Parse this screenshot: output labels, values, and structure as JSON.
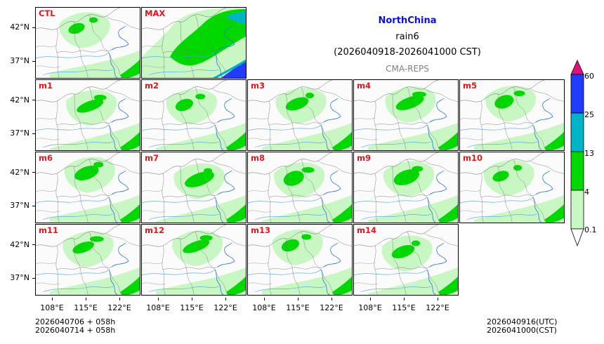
{
  "header": {
    "region": "NorthChina",
    "variable": "rain6",
    "period": "(2026040918-2026041000 CST)",
    "system": "CMA-REPS"
  },
  "colors": {
    "region_title": "#0b10d6",
    "member_label": "#e8141c",
    "system_label": "#808080",
    "levels": [
      "#c9f7c4",
      "#00d800",
      "#00b4c8",
      "#1f3cff",
      "#e0107a"
    ]
  },
  "panels": [
    {
      "label": "CTL"
    },
    {
      "label": "MAX"
    },
    {
      "label": "m1"
    },
    {
      "label": "m2"
    },
    {
      "label": "m3"
    },
    {
      "label": "m4"
    },
    {
      "label": "m5"
    },
    {
      "label": "m6"
    },
    {
      "label": "m7"
    },
    {
      "label": "m8"
    },
    {
      "label": "m9"
    },
    {
      "label": "m10"
    },
    {
      "label": "m11"
    },
    {
      "label": "m12"
    },
    {
      "label": "m13"
    },
    {
      "label": "m14"
    }
  ],
  "axes": {
    "lat_labels": [
      "42°N",
      "37°N"
    ],
    "lon_labels": [
      "108°E",
      "115°E",
      "122°E"
    ]
  },
  "colorbar": {
    "levels": [
      "0.1",
      "4",
      "13",
      "25",
      "60"
    ]
  },
  "footer": {
    "init_utc": "2026040706  +  058h",
    "init_cst": "2026040714  +  058h",
    "valid_utc": "2026040916(UTC)",
    "valid_cst": "2026041000(CST)"
  }
}
